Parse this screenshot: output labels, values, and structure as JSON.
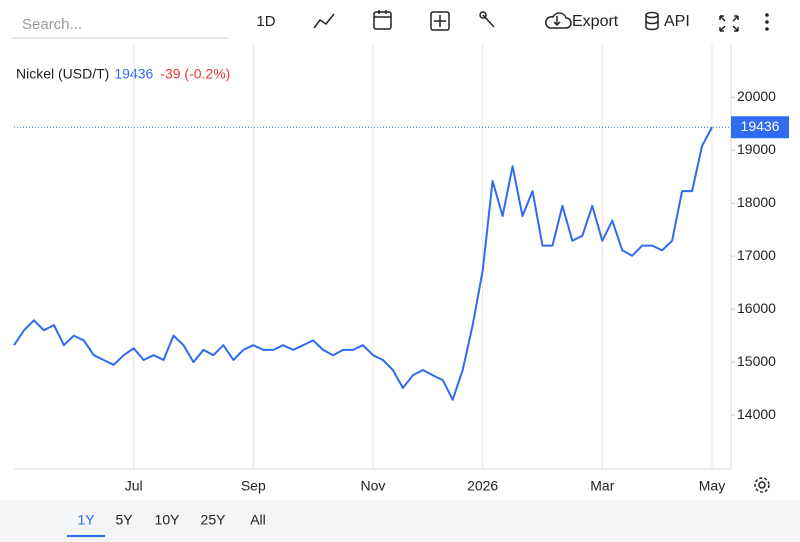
{
  "toolbar": {
    "search_placeholder": "Search...",
    "interval": "1D",
    "export": "Export",
    "api": "API"
  },
  "ranges": [
    "1Y",
    "5Y",
    "10Y",
    "25Y",
    "All"
  ],
  "active_range": 0,
  "chart_data": {
    "type": "line",
    "series": [
      {
        "name": "Nickel (USD/T)",
        "color": "#2f6bf0",
        "values": [
          15320,
          15600,
          15790,
          15600,
          15700,
          15320,
          15500,
          15410,
          15130,
          15040,
          14950,
          15130,
          15260,
          15040,
          15130,
          15040,
          15500,
          15320,
          15000,
          15230,
          15130,
          15320,
          15040,
          15230,
          15320,
          15230,
          15230,
          15320,
          15230,
          15320,
          15410,
          15230,
          15130,
          15230,
          15230,
          15320,
          15130,
          15040,
          14850,
          14510,
          14750,
          14850,
          14750,
          14660,
          14290,
          14850,
          15700,
          16730,
          18420,
          17760,
          18700,
          17760,
          18230,
          17200,
          17200,
          17950,
          17290,
          17390,
          17950,
          17290,
          17670,
          17110,
          17010,
          17200,
          17200,
          17110,
          17290,
          18230,
          18230,
          19080,
          19436
        ]
      }
    ],
    "change": "-39 (-0.2%)",
    "change_color": "#e53935",
    "categories": [
      null,
      null,
      null,
      null,
      null,
      null,
      null,
      null,
      null,
      null,
      null,
      null,
      "Jul",
      null,
      null,
      null,
      null,
      null,
      null,
      null,
      null,
      null,
      null,
      null,
      "Sep",
      null,
      null,
      null,
      null,
      null,
      null,
      null,
      null,
      null,
      null,
      null,
      "Nov",
      null,
      null,
      null,
      null,
      null,
      null,
      null,
      null,
      null,
      null,
      "2026",
      null,
      null,
      null,
      null,
      null,
      null,
      null,
      null,
      null,
      null,
      null,
      "Mar",
      null,
      null,
      null,
      null,
      null,
      null,
      null,
      null,
      null,
      null,
      "May"
    ],
    "ylim": [
      13000,
      20800
    ],
    "yticks": [
      14000,
      15000,
      16000,
      17000,
      18000,
      19000,
      20000
    ],
    "grid": true,
    "axis_side": "right"
  }
}
